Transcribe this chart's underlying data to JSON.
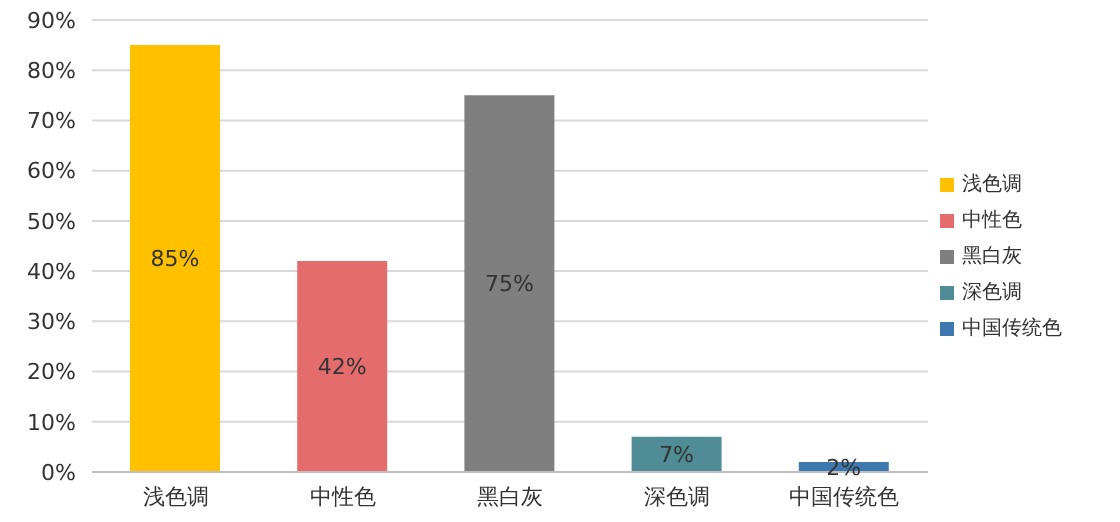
{
  "chart_data": {
    "type": "bar",
    "categories": [
      "浅色调",
      "中性色",
      "黑白灰",
      "深色调",
      "中国传统色"
    ],
    "stacked": true,
    "series": [
      {
        "name": "浅色调",
        "color": "#ffc000",
        "values": [
          85,
          null,
          null,
          null,
          null
        ],
        "value_labels": [
          "85%",
          null,
          null,
          null,
          null
        ]
      },
      {
        "name": "中性色",
        "color": "#e46c6c",
        "values": [
          null,
          42,
          null,
          null,
          null
        ],
        "value_labels": [
          null,
          "42%",
          null,
          null,
          null
        ]
      },
      {
        "name": "黑白灰",
        "color": "#7f7f7f",
        "values": [
          null,
          null,
          75,
          null,
          null
        ],
        "value_labels": [
          null,
          null,
          "75%",
          null,
          null
        ]
      },
      {
        "name": "深色调",
        "color": "#4f8c96",
        "values": [
          null,
          null,
          null,
          7,
          null
        ],
        "value_labels": [
          null,
          null,
          null,
          "7%",
          null
        ]
      },
      {
        "name": "中国传统色",
        "color": "#3d79b0",
        "values": [
          null,
          null,
          null,
          null,
          2
        ],
        "value_labels": [
          null,
          null,
          null,
          null,
          "2%"
        ]
      }
    ],
    "ylim": [
      0,
      90
    ],
    "yticks": [
      {
        "value": 0,
        "label": "0%"
      },
      {
        "value": 10,
        "label": "10%"
      },
      {
        "value": 20,
        "label": "20%"
      },
      {
        "value": 30,
        "label": "30%"
      },
      {
        "value": 40,
        "label": "40%"
      },
      {
        "value": 50,
        "label": "50%"
      },
      {
        "value": 60,
        "label": "60%"
      },
      {
        "value": 70,
        "label": "70%"
      },
      {
        "value": 80,
        "label": "80%"
      },
      {
        "value": 90,
        "label": "90%"
      }
    ],
    "grid": "y",
    "legend": "right"
  }
}
